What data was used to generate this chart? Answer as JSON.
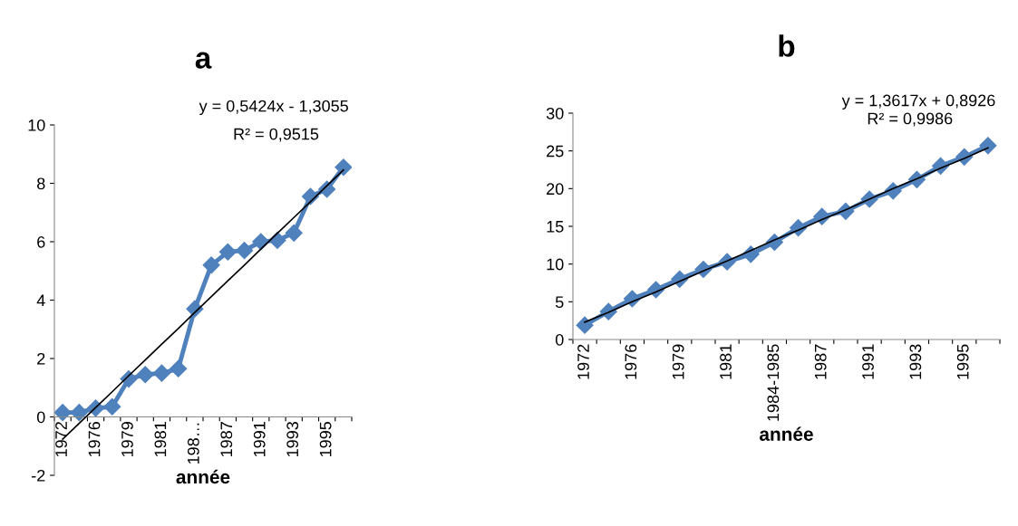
{
  "chart_data": [
    {
      "type": "line",
      "title": "a",
      "xlabel": "année",
      "categories": [
        "1972",
        null,
        "1976",
        null,
        "1979",
        null,
        "1981",
        null,
        "198…",
        null,
        "1987",
        null,
        "1991",
        null,
        "1993",
        null,
        "1995",
        null
      ],
      "series": [
        {
          "color": "#4f81bd",
          "marker": "diamond",
          "values": [
            0.15,
            0.15,
            0.3,
            0.35,
            1.3,
            1.45,
            1.5,
            1.65,
            3.7,
            5.2,
            5.65,
            5.7,
            6.0,
            6.05,
            6.3,
            7.55,
            7.8,
            8.55
          ]
        },
        {
          "type": "line",
          "color": "#000000",
          "marker": "none",
          "values": [
            -0.76,
            -0.22,
            0.32,
            0.86,
            1.41,
            1.95,
            2.49,
            3.03,
            3.58,
            4.12,
            4.66,
            5.2,
            5.75,
            6.29,
            6.83,
            7.37,
            7.92,
            8.46
          ]
        }
      ],
      "ylim": [
        -2,
        10
      ],
      "yticks": [
        -2,
        0,
        2,
        4,
        6,
        8,
        10
      ],
      "annotations": [
        "y = 0,5424x - 1,3055",
        "R² = 0,9515"
      ],
      "grid": false,
      "legend": false
    },
    {
      "type": "line",
      "title": "b",
      "xlabel": "année",
      "categories": [
        "1972",
        null,
        "1976",
        null,
        "1979",
        null,
        "1981",
        null,
        "1984-1985",
        null,
        "1987",
        null,
        "1991",
        null,
        "1993",
        null,
        "1995",
        null
      ],
      "series": [
        {
          "color": "#4f81bd",
          "marker": "diamond",
          "values": [
            1.9,
            3.7,
            5.4,
            6.6,
            8.0,
            9.3,
            10.3,
            11.3,
            12.9,
            14.8,
            16.3,
            17.0,
            18.6,
            19.7,
            21.2,
            23.0,
            24.2,
            25.7
          ]
        },
        {
          "type": "line",
          "color": "#000000",
          "marker": "none",
          "values": [
            2.3,
            3.6,
            5.0,
            6.3,
            7.7,
            9.1,
            10.4,
            11.8,
            13.2,
            14.5,
            15.9,
            17.2,
            18.6,
            20.0,
            21.3,
            22.7,
            24.0,
            25.4
          ]
        }
      ],
      "ylim": [
        0,
        30
      ],
      "yticks": [
        0,
        5,
        10,
        15,
        20,
        25,
        30
      ],
      "annotations": [
        "y = 1,3617x + 0,8926",
        "R² = 0,9986"
      ],
      "grid": false,
      "legend": false
    }
  ]
}
